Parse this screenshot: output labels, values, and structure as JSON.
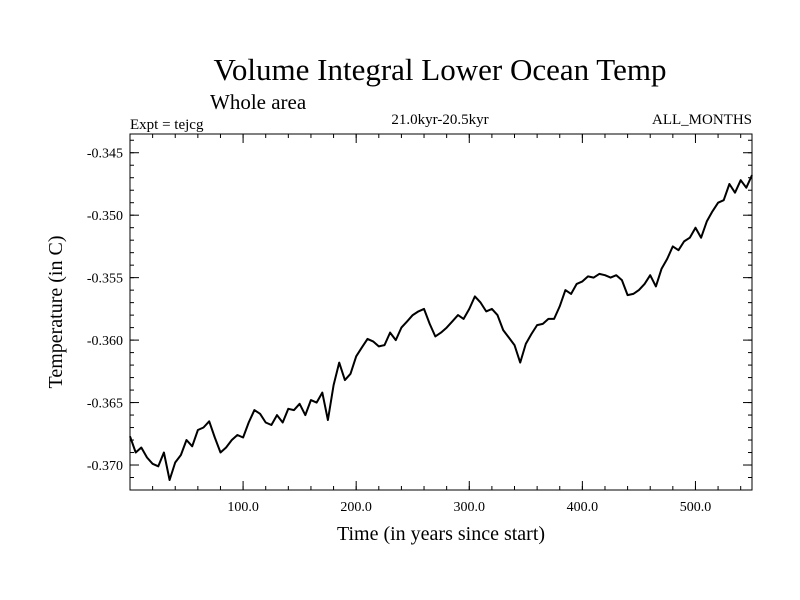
{
  "chart_data": {
    "type": "line",
    "title": "Volume Integral Lower Ocean Temp",
    "subtitle": "Whole area",
    "annotations": {
      "left": "Expt = tejcg",
      "center": "21.0kyr-20.5kyr",
      "right": "ALL_MONTHS"
    },
    "xlabel": "Time (in years since start)",
    "ylabel": "Temperature (in C)",
    "xlim": [
      0,
      550
    ],
    "ylim": [
      -0.372,
      -0.3435
    ],
    "x_ticks": [
      100,
      200,
      300,
      400,
      500
    ],
    "x_tick_labels": [
      "100.0",
      "200.0",
      "300.0",
      "400.0",
      "500.0"
    ],
    "x_minor_step": 20,
    "y_ticks": [
      -0.345,
      -0.35,
      -0.355,
      -0.36,
      -0.365,
      -0.37
    ],
    "y_tick_labels": [
      "-0.345",
      "-0.350",
      "-0.355",
      "-0.360",
      "-0.365",
      "-0.370"
    ],
    "y_minor_step": 0.001,
    "grid": false,
    "series": [
      {
        "name": "tejcg",
        "color": "#000000",
        "x": [
          0,
          5,
          10,
          15,
          20,
          25,
          30,
          35,
          40,
          45,
          50,
          55,
          60,
          65,
          70,
          75,
          80,
          85,
          90,
          95,
          100,
          105,
          110,
          115,
          120,
          125,
          130,
          135,
          140,
          145,
          150,
          155,
          160,
          165,
          170,
          175,
          180,
          185,
          190,
          195,
          200,
          205,
          210,
          215,
          220,
          225,
          230,
          235,
          240,
          245,
          250,
          255,
          260,
          265,
          270,
          275,
          280,
          285,
          290,
          295,
          300,
          305,
          310,
          315,
          320,
          325,
          330,
          335,
          340,
          345,
          350,
          355,
          360,
          365,
          370,
          375,
          380,
          385,
          390,
          395,
          400,
          405,
          410,
          415,
          420,
          425,
          430,
          435,
          440,
          445,
          450,
          455,
          460,
          465,
          470,
          475,
          480,
          485,
          490,
          495,
          500,
          505,
          510,
          515,
          520,
          525,
          530,
          535,
          540,
          545,
          550
        ],
        "y": [
          -0.3677,
          -0.369,
          -0.3686,
          -0.3694,
          -0.3699,
          -0.3701,
          -0.369,
          -0.3712,
          -0.3698,
          -0.3692,
          -0.368,
          -0.3685,
          -0.3672,
          -0.367,
          -0.3665,
          -0.3678,
          -0.369,
          -0.3686,
          -0.368,
          -0.3676,
          -0.3678,
          -0.3666,
          -0.3656,
          -0.3659,
          -0.3666,
          -0.3668,
          -0.366,
          -0.3666,
          -0.3655,
          -0.3656,
          -0.3651,
          -0.366,
          -0.3648,
          -0.365,
          -0.3642,
          -0.3664,
          -0.3636,
          -0.3618,
          -0.3632,
          -0.3627,
          -0.3613,
          -0.3606,
          -0.3599,
          -0.3601,
          -0.3605,
          -0.3604,
          -0.3594,
          -0.36,
          -0.359,
          -0.3585,
          -0.358,
          -0.3577,
          -0.3575,
          -0.3587,
          -0.3597,
          -0.3594,
          -0.359,
          -0.3585,
          -0.358,
          -0.3583,
          -0.3575,
          -0.3565,
          -0.357,
          -0.3577,
          -0.3575,
          -0.358,
          -0.3592,
          -0.3598,
          -0.3604,
          -0.3618,
          -0.3603,
          -0.3595,
          -0.3588,
          -0.3587,
          -0.3583,
          -0.3583,
          -0.3573,
          -0.356,
          -0.3563,
          -0.3555,
          -0.3553,
          -0.3549,
          -0.355,
          -0.3547,
          -0.3548,
          -0.355,
          -0.3548,
          -0.3552,
          -0.3564,
          -0.3563,
          -0.356,
          -0.3555,
          -0.3548,
          -0.3557,
          -0.3543,
          -0.3535,
          -0.3525,
          -0.3528,
          -0.3521,
          -0.3518,
          -0.351,
          -0.3518,
          -0.3505,
          -0.3497,
          -0.349,
          -0.3488,
          -0.3475,
          -0.3482,
          -0.3472,
          -0.3478,
          -0.3468
        ]
      }
    ]
  }
}
